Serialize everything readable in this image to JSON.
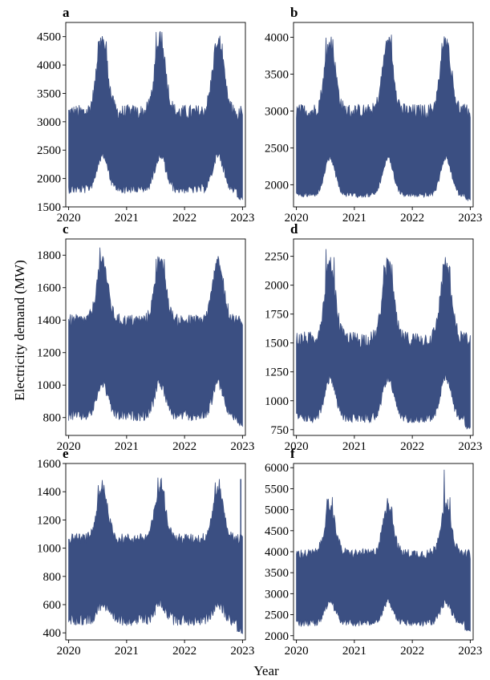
{
  "figure": {
    "ylabel": "Electricity demand (MW)",
    "xlabel": "Year",
    "series_color": "#3b4f82"
  },
  "chart_data": [
    {
      "type": "line",
      "panel": "a",
      "x_ticks": [
        "2020",
        "2021",
        "2022",
        "2023"
      ],
      "xlim": [
        2019.95,
        2023.05
      ],
      "ylim": [
        1500,
        4750
      ],
      "y_ticks": [
        1500,
        2000,
        2500,
        3000,
        3500,
        4000,
        4500
      ],
      "grid": false,
      "seasonal": {
        "winter_upper": 3100,
        "summer_upper": 4400,
        "winter_lower": 1900,
        "summer_lower": 2500,
        "summer_peak_upper": 4650,
        "min_lower": 1620,
        "annual_peaks": [
          4450,
          4680,
          4270
        ]
      }
    },
    {
      "type": "line",
      "panel": "b",
      "x_ticks": [
        "2020",
        "2021",
        "2022",
        "2023"
      ],
      "xlim": [
        2019.95,
        2023.05
      ],
      "ylim": [
        1700,
        4200
      ],
      "y_ticks": [
        2000,
        2500,
        3000,
        3500,
        4000
      ],
      "grid": false,
      "seasonal": {
        "winter_upper": 2950,
        "summer_upper": 3900,
        "winter_lower": 1900,
        "summer_lower": 2400,
        "summer_peak_upper": 4120,
        "min_lower": 1780,
        "annual_peaks": [
          4080,
          4130,
          4020
        ]
      }
    },
    {
      "type": "line",
      "panel": "c",
      "x_ticks": [
        "2020",
        "2021",
        "2022",
        "2023"
      ],
      "xlim": [
        2019.95,
        2023.05
      ],
      "ylim": [
        690,
        1900
      ],
      "y_ticks": [
        800,
        1000,
        1200,
        1400,
        1600,
        1800
      ],
      "grid": false,
      "seasonal": {
        "winter_upper": 1380,
        "summer_upper": 1750,
        "winter_lower": 850,
        "summer_lower": 1050,
        "summer_peak_upper": 1870,
        "min_lower": 730,
        "annual_peaks": [
          1870,
          1830,
          1690
        ]
      }
    },
    {
      "type": "line",
      "panel": "d",
      "x_ticks": [
        "2020",
        "2021",
        "2022",
        "2023"
      ],
      "xlim": [
        2019.95,
        2023.05
      ],
      "ylim": [
        700,
        2400
      ],
      "y_ticks": [
        750,
        1000,
        1250,
        1500,
        1750,
        2000,
        2250
      ],
      "grid": false,
      "seasonal": {
        "winter_upper": 1500,
        "summer_upper": 2150,
        "winter_lower": 900,
        "summer_lower": 1250,
        "summer_peak_upper": 2370,
        "min_lower": 750,
        "annual_peaks": [
          2370,
          2190,
          2200
        ]
      }
    },
    {
      "type": "line",
      "panel": "e",
      "x_ticks": [
        "2020",
        "2021",
        "2022",
        "2023"
      ],
      "xlim": [
        2019.95,
        2023.05
      ],
      "ylim": [
        350,
        1600
      ],
      "y_ticks": [
        400,
        600,
        800,
        1000,
        1200,
        1400,
        1600
      ],
      "grid": false,
      "seasonal": {
        "winter_upper": 1050,
        "summer_upper": 1400,
        "winter_lower": 540,
        "summer_lower": 650,
        "summer_peak_upper": 1540,
        "min_lower": 390,
        "annual_peaks": [
          1540,
          1510,
          1500
        ],
        "spike": {
          "x": 2022.97,
          "y": 1490
        }
      }
    },
    {
      "type": "line",
      "panel": "f",
      "x_ticks": [
        "2020",
        "2021",
        "2022",
        "2023"
      ],
      "xlim": [
        2019.95,
        2023.05
      ],
      "ylim": [
        1900,
        6100
      ],
      "y_ticks": [
        2000,
        2500,
        3000,
        3500,
        4000,
        4500,
        5000,
        5500,
        6000
      ],
      "grid": false,
      "seasonal": {
        "winter_upper": 3900,
        "summer_upper": 5000,
        "winter_lower": 2400,
        "summer_lower": 2900,
        "summer_peak_upper": 5350,
        "min_lower": 2100,
        "annual_peaks": [
          5320,
          5360,
          5960
        ]
      }
    }
  ]
}
